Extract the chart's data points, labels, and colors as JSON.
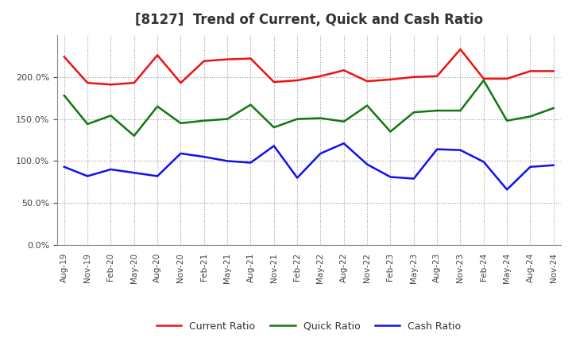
{
  "title": "[8127]  Trend of Current, Quick and Cash Ratio",
  "x_labels": [
    "Aug-19",
    "Nov-19",
    "Feb-20",
    "May-20",
    "Aug-20",
    "Nov-20",
    "Feb-21",
    "May-21",
    "Aug-21",
    "Nov-21",
    "Feb-22",
    "May-22",
    "Aug-22",
    "Nov-22",
    "Feb-23",
    "May-23",
    "Aug-23",
    "Nov-23",
    "Feb-24",
    "May-24",
    "Aug-24",
    "Nov-24"
  ],
  "current_ratio": [
    224,
    193,
    191,
    193,
    226,
    193,
    219,
    221,
    222,
    194,
    196,
    201,
    208,
    195,
    197,
    200,
    201,
    233,
    198,
    198,
    207,
    207
  ],
  "quick_ratio": [
    178,
    144,
    154,
    130,
    165,
    145,
    148,
    150,
    167,
    140,
    150,
    151,
    147,
    166,
    135,
    158,
    160,
    160,
    196,
    148,
    153,
    163
  ],
  "cash_ratio": [
    93,
    82,
    90,
    86,
    82,
    109,
    105,
    100,
    98,
    118,
    80,
    109,
    121,
    96,
    81,
    79,
    114,
    113,
    99,
    66,
    93,
    95
  ],
  "ylim": [
    0,
    250
  ],
  "yticks": [
    0,
    50,
    100,
    150,
    200
  ],
  "current_color": "#EE1111",
  "quick_color": "#117711",
  "cash_color": "#1111EE",
  "background_color": "#FFFFFF",
  "plot_bg_color": "#FFFFFF",
  "grid_color": "#999999",
  "title_fontsize": 12,
  "tick_color": "#444444",
  "legend_labels": [
    "Current Ratio",
    "Quick Ratio",
    "Cash Ratio"
  ]
}
